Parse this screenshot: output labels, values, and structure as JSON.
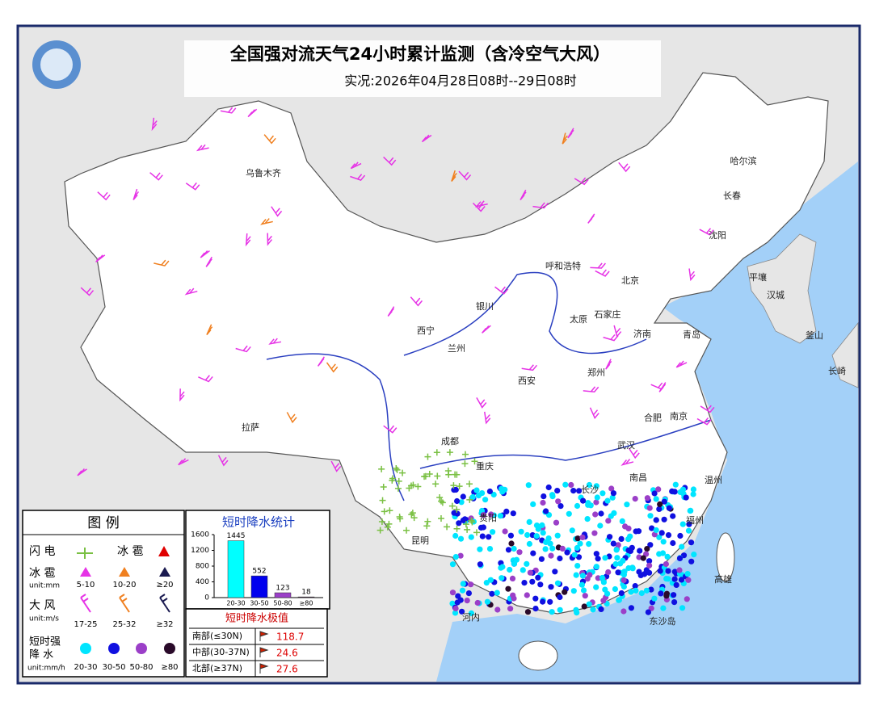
{
  "header": {
    "title": "全国强对流天气24小时累计监测（含冷空气大风）",
    "subtitle": "实况:2026年04月28日08时--29日08时"
  },
  "cities": [
    "乌鲁木齐",
    "哈尔滨",
    "长春",
    "沈阳",
    "呼和浩特",
    "北京",
    "太原",
    "石家庄",
    "济南",
    "青岛",
    "银川",
    "西宁",
    "兰州",
    "郑州",
    "西安",
    "合肥",
    "南京",
    "武汉",
    "成都",
    "重庆",
    "长沙",
    "南昌",
    "温州",
    "福州",
    "拉萨",
    "贵阳",
    "昆明",
    "河内",
    "东沙岛",
    "平壤",
    "汉城",
    "釜山",
    "长崎",
    "高雄"
  ],
  "legend": {
    "title": "图 例",
    "lightning": "闪 电",
    "hail": "冰 雹",
    "hail_sizes": {
      "label": "冰 雹",
      "unit": "unit:mm",
      "classes": [
        "5-10",
        "10-20",
        "≥20"
      ]
    },
    "wind": {
      "label": "大 风",
      "unit": "unit:m/s",
      "classes": [
        "17-25",
        "25-32",
        "≥32"
      ]
    },
    "rain": {
      "label": [
        "短时强",
        "降 水"
      ],
      "unit": "unit:mm/h",
      "classes": [
        "20-30",
        "30-50",
        "50-80",
        "≥80"
      ]
    }
  },
  "stats": {
    "type": "bar",
    "title": "短时降水统计",
    "categories": [
      "20-30",
      "30-50",
      "50-80",
      "≥80"
    ],
    "values": [
      1445,
      552,
      123,
      18
    ],
    "colors": [
      "#00ffff",
      "#0000ee",
      "#9b3fc8",
      "#2a0a2a"
    ],
    "ylim": [
      0,
      1600
    ],
    "yticks": [
      0,
      400,
      800,
      1200,
      1600
    ]
  },
  "extremes": {
    "title": "短时降水极值",
    "rows": [
      {
        "region": "南部(≤30N)",
        "value": 118.7
      },
      {
        "region": "中部(30-37N)",
        "value": 24.6
      },
      {
        "region": "北部(≥37N)",
        "value": 27.6
      }
    ]
  }
}
